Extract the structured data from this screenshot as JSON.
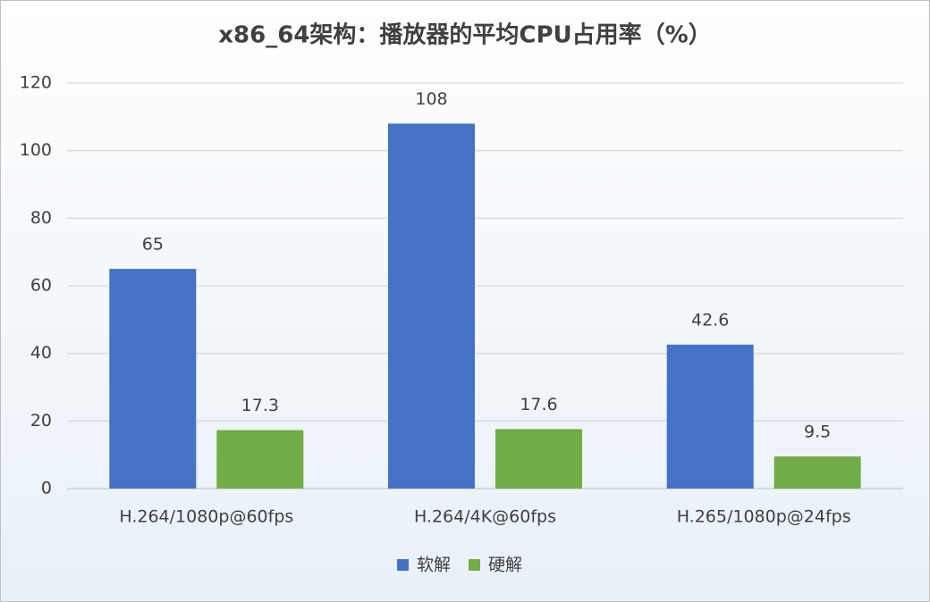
{
  "chart_data": {
    "type": "bar",
    "title": "x86_64架构：播放器的平均CPU占用率（%）",
    "categories": [
      "H.264/1080p@60fps",
      "H.264/4K@60fps",
      "H.265/1080p@24fps"
    ],
    "series": [
      {
        "name": "软解",
        "color": "#4472c4",
        "values": [
          65,
          108,
          42.6
        ]
      },
      {
        "name": "硬解",
        "color": "#70ad47",
        "values": [
          17.3,
          17.6,
          9.5
        ]
      }
    ],
    "ylim": [
      0,
      120
    ],
    "yticks": [
      0,
      20,
      40,
      60,
      80,
      100,
      120
    ],
    "grid": true,
    "legend": "bottom"
  }
}
